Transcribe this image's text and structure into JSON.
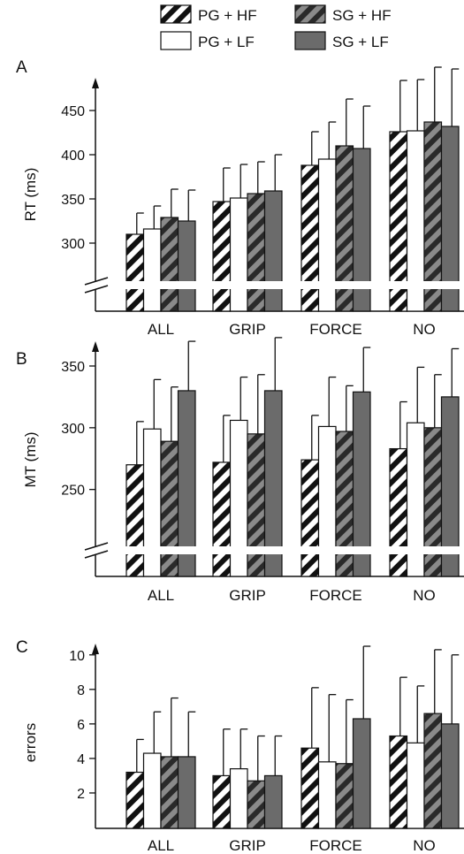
{
  "legend": [
    {
      "label": "PG + HF",
      "style": "hatch-white"
    },
    {
      "label": "SG + HF",
      "style": "hatch-gray"
    },
    {
      "label": "PG + LF",
      "style": "white"
    },
    {
      "label": "SG + LF",
      "style": "gray"
    }
  ],
  "colors": {
    "axis": "#111111",
    "bar_gray": "#6b6b6b",
    "hatch_gray_bg": "#8a8a8a",
    "white": "#ffffff"
  },
  "chart_data": [
    {
      "panel": "A",
      "type": "bar",
      "ylabel": "RT (ms)",
      "categories": [
        "ALL",
        "GRIP",
        "FORCE",
        "NO"
      ],
      "yticks": [
        "300",
        "350",
        "400",
        "450"
      ],
      "ylim": [
        250,
        500
      ],
      "axis_break": true,
      "series": [
        {
          "name": "PG + HF",
          "values": [
            310,
            347,
            388,
            426
          ],
          "errors": [
            24,
            38,
            38,
            58
          ]
        },
        {
          "name": "PG + LF",
          "values": [
            316,
            351,
            395,
            427
          ],
          "errors": [
            26,
            38,
            42,
            58
          ]
        },
        {
          "name": "SG + HF",
          "values": [
            329,
            356,
            410,
            437
          ],
          "errors": [
            32,
            36,
            53,
            62
          ]
        },
        {
          "name": "SG + LF",
          "values": [
            325,
            359,
            407,
            432
          ],
          "errors": [
            35,
            41,
            48,
            65
          ]
        }
      ]
    },
    {
      "panel": "B",
      "type": "bar",
      "ylabel": "MT (ms)",
      "categories": [
        "ALL",
        "GRIP",
        "FORCE",
        "NO"
      ],
      "yticks": [
        "250",
        "300",
        "350"
      ],
      "ylim": [
        200,
        370
      ],
      "axis_break": true,
      "series": [
        {
          "name": "PG + HF",
          "values": [
            270,
            272,
            274,
            283
          ],
          "errors": [
            35,
            38,
            36,
            38
          ]
        },
        {
          "name": "PG + LF",
          "values": [
            299,
            306,
            301,
            304
          ],
          "errors": [
            40,
            35,
            40,
            45
          ]
        },
        {
          "name": "SG + HF",
          "values": [
            289,
            295,
            297,
            300
          ],
          "errors": [
            44,
            48,
            37,
            43
          ]
        },
        {
          "name": "SG + LF",
          "values": [
            330,
            330,
            329,
            325
          ],
          "errors": [
            40,
            43,
            36,
            39
          ]
        }
      ]
    },
    {
      "panel": "C",
      "type": "bar",
      "ylabel": "errors",
      "categories": [
        "ALL",
        "GRIP",
        "FORCE",
        "NO"
      ],
      "yticks": [
        "2",
        "4",
        "6",
        "8",
        "10"
      ],
      "ylim": [
        0,
        10.5
      ],
      "axis_break": false,
      "series": [
        {
          "name": "PG + HF",
          "values": [
            3.2,
            3.0,
            4.6,
            5.3
          ],
          "errors": [
            1.9,
            2.7,
            3.5,
            3.4
          ]
        },
        {
          "name": "PG + LF",
          "values": [
            4.3,
            3.4,
            3.8,
            4.9
          ],
          "errors": [
            2.4,
            2.3,
            3.9,
            3.3
          ]
        },
        {
          "name": "SG + HF",
          "values": [
            4.1,
            2.7,
            3.7,
            6.6
          ],
          "errors": [
            3.4,
            2.6,
            3.7,
            3.7
          ]
        },
        {
          "name": "SG + LF",
          "values": [
            4.1,
            3.0,
            6.3,
            6.0
          ],
          "errors": [
            2.6,
            2.3,
            4.2,
            4.0
          ]
        }
      ]
    }
  ]
}
